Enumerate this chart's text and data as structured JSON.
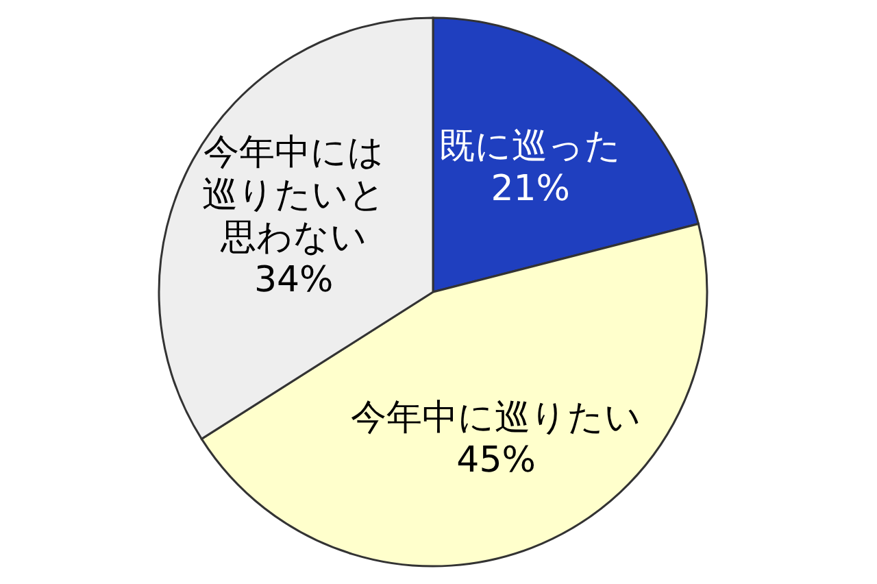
{
  "chart_data": {
    "type": "pie",
    "categories": [
      "既に巡った",
      "今年中に巡りたい",
      "今年中には巡りたいと思わない"
    ],
    "values": [
      21,
      45,
      34
    ],
    "colors": [
      "#1f3fbf",
      "#ffffcc",
      "#eeeeee"
    ],
    "value_labels": [
      "21%",
      "45%",
      "34%"
    ]
  }
}
